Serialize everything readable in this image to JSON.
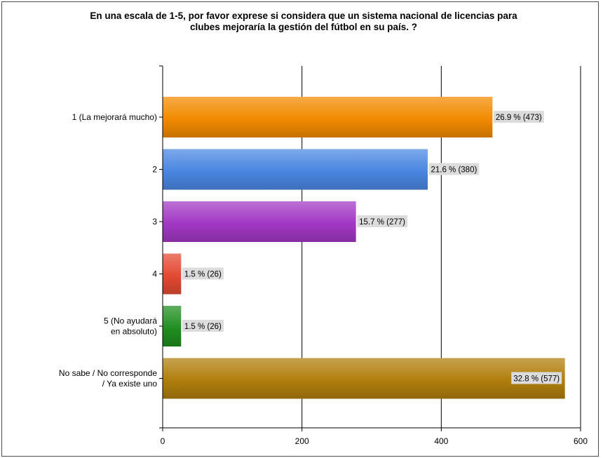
{
  "chart_data": {
    "type": "bar",
    "orientation": "horizontal",
    "title": "En una escala de 1-5, por favor exprese si considera que un sistema nacional de licencias para clubes mejoraría la gestión del fútbol en su país. ?",
    "title_lines": [
      "En una escala de 1-5, por favor exprese si considera que un sistema nacional de licencias para",
      "clubes mejoraría la gestión del fútbol en su país. ?"
    ],
    "categories": [
      "1 (La mejorará mucho)",
      "2",
      "3",
      "4",
      "5 (No ayudará en absoluto)",
      "No sabe / No corresponde / Ya existe uno"
    ],
    "category_lines": [
      [
        "1 (La mejorará mucho)"
      ],
      [
        "2"
      ],
      [
        "3"
      ],
      [
        "4"
      ],
      [
        "5 (No ayudará",
        "en absoluto)"
      ],
      [
        "No sabe / No corresponde",
        "/ Ya existe uno"
      ]
    ],
    "values": [
      473,
      380,
      277,
      26,
      26,
      577
    ],
    "data_labels": [
      "26.9 % (473)",
      "21.6 % (380)",
      "15.7 % (277)",
      "1.5 % (26)",
      "1.5 % (26)",
      "32.8 % (577)"
    ],
    "colors": [
      "#f28a00",
      "#4a86e2",
      "#a238c4",
      "#e34a33",
      "#1f8f1f",
      "#b07e0c"
    ],
    "xlim": [
      0,
      600
    ],
    "xticks": [
      0,
      200,
      400,
      600
    ],
    "xtick_labels": [
      "0",
      "200",
      "400",
      "600"
    ],
    "grid": true,
    "legend": "none"
  }
}
